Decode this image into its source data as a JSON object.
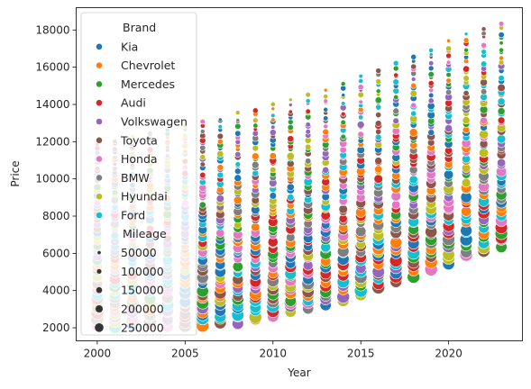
{
  "chart_data": {
    "type": "scatter",
    "xlabel": "Year",
    "ylabel": "Price",
    "xlim": [
      1998.8,
      2024.2
    ],
    "ylim": [
      1300,
      19200
    ],
    "xticks": [
      2000,
      2005,
      2010,
      2015,
      2020
    ],
    "yticks": [
      2000,
      4000,
      6000,
      8000,
      10000,
      12000,
      14000,
      16000,
      18000
    ],
    "x_values": [
      2000,
      2001,
      2002,
      2003,
      2004,
      2005,
      2006,
      2007,
      2008,
      2009,
      2010,
      2011,
      2012,
      2013,
      2014,
      2015,
      2016,
      2017,
      2018,
      2019,
      2020,
      2021,
      2022,
      2023
    ],
    "price_range_by_year": {
      "min": [
        2000,
        2000,
        2000,
        2000,
        2000,
        2000,
        2100,
        2100,
        2200,
        2300,
        2500,
        2700,
        2900,
        3100,
        3400,
        3700,
        4000,
        4300,
        4700,
        5100,
        5400,
        5700,
        6000,
        6300
      ],
      "max": [
        12000,
        12200,
        12400,
        12600,
        12800,
        13000,
        13200,
        13400,
        13600,
        13800,
        14100,
        14300,
        14600,
        14900,
        15200,
        15600,
        15900,
        16300,
        16700,
        17100,
        17500,
        17900,
        18200,
        18400
      ]
    },
    "points_per_year": 48,
    "grid": false,
    "legend": {
      "placement": "top-left",
      "hue_title": "Brand",
      "brands": [
        {
          "name": "Kia",
          "color": "#1f77b4"
        },
        {
          "name": "Chevrolet",
          "color": "#ff7f0e"
        },
        {
          "name": "Mercedes",
          "color": "#2ca02c"
        },
        {
          "name": "Audi",
          "color": "#d62728"
        },
        {
          "name": "Volkswagen",
          "color": "#9467bd"
        },
        {
          "name": "Toyota",
          "color": "#8c564b"
        },
        {
          "name": "Honda",
          "color": "#e377c2"
        },
        {
          "name": "BMW",
          "color": "#7f7f7f"
        },
        {
          "name": "Hyundai",
          "color": "#bcbd22"
        },
        {
          "name": "Ford",
          "color": "#17becf"
        }
      ],
      "size_title": "Mileage",
      "sizes": [
        {
          "label": "50000",
          "value": 50000
        },
        {
          "label": "100000",
          "value": 100000
        },
        {
          "label": "150000",
          "value": 150000
        },
        {
          "label": "200000",
          "value": 200000
        },
        {
          "label": "250000",
          "value": 250000
        }
      ]
    }
  }
}
